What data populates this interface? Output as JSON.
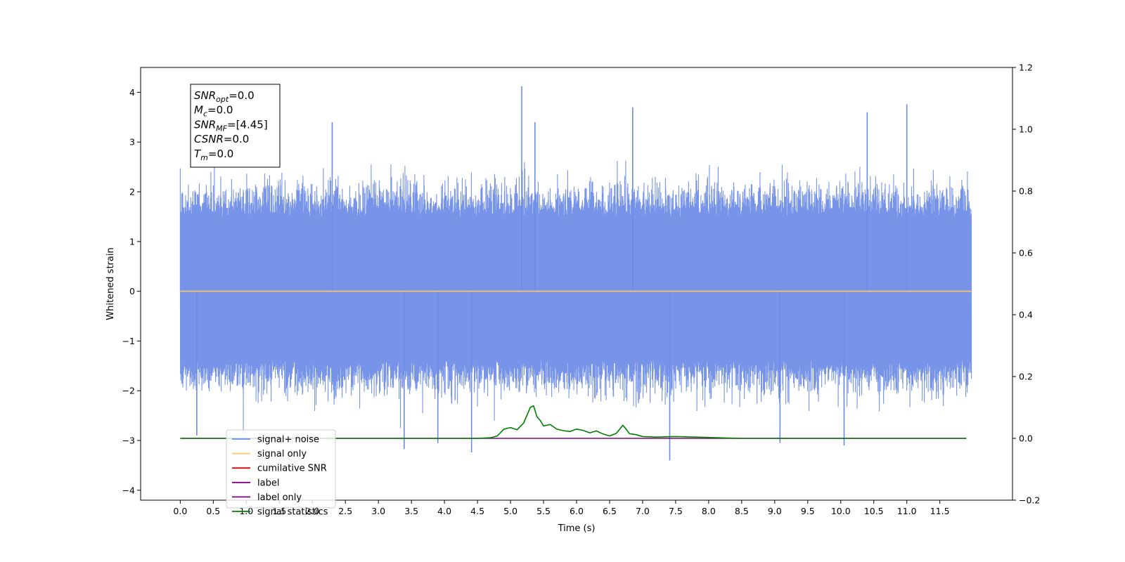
{
  "chart_data": {
    "type": "line",
    "xlabel": "Time (s)",
    "ylabel": "Whitened strain",
    "xlim": [
      -0.6,
      12.6
    ],
    "ylim": [
      -4.2,
      4.5
    ],
    "y2lim": [
      -0.2,
      1.2
    ],
    "x_ticks": [
      "0.0",
      "0.5",
      "1.0",
      "1.5",
      "2.0",
      "2.5",
      "3.0",
      "3.5",
      "4.0",
      "4.5",
      "5.0",
      "5.5",
      "6.0",
      "6.5",
      "7.0",
      "7.5",
      "8.0",
      "8.5",
      "9.0",
      "9.5",
      "10.0",
      "10.5",
      "11.0",
      "11.5"
    ],
    "y_ticks": [
      "4",
      "3",
      "2",
      "1",
      "0",
      "−1",
      "−2",
      "−3",
      "−4"
    ],
    "y2_ticks": [
      "1.2",
      "1.0",
      "0.8",
      "0.6",
      "0.4",
      "0.2",
      "0.0",
      "−0.2"
    ],
    "legend_position": "lower-left",
    "legend": [
      {
        "label": "signal+ noise",
        "color": "#6b8be6"
      },
      {
        "label": "signal only",
        "color": "#ffc966"
      },
      {
        "label": "cumilative SNR",
        "color": "#ff0000"
      },
      {
        "label": "label",
        "color": "#800080"
      },
      {
        "label": "label only",
        "color": "#800080"
      },
      {
        "label": "signal statistics",
        "color": "#008000"
      }
    ],
    "annotations": [
      {
        "base": "SNR",
        "sub": "opt",
        "value": "=0.0"
      },
      {
        "base": "M",
        "sub": "c",
        "value": "=0.0"
      },
      {
        "base": "SNR",
        "sub": "MF",
        "value": "=[4.45]"
      },
      {
        "base": "CSNR",
        "sub": "",
        "value": "=0.0"
      },
      {
        "base": "T",
        "sub": "m",
        "value": "=0.0"
      }
    ],
    "series": [
      {
        "name": "signal+ noise",
        "axis": "left",
        "color": "#6b8be6",
        "x_range": [
          0.0,
          11.98
        ],
        "envelope_typical": [
          -1.4,
          1.5
        ],
        "extremes": [
          {
            "x": 5.17,
            "y": 4.12
          },
          {
            "x": 11.0,
            "y": 3.76
          },
          {
            "x": 6.85,
            "y": 3.7
          },
          {
            "x": 10.4,
            "y": 3.6
          },
          {
            "x": 2.3,
            "y": 3.4
          },
          {
            "x": 5.37,
            "y": 3.4
          },
          {
            "x": 7.41,
            "y": -3.4
          },
          {
            "x": 3.39,
            "y": -3.17
          },
          {
            "x": 4.41,
            "y": -3.24
          },
          {
            "x": 3.9,
            "y": -3.05
          },
          {
            "x": 10.05,
            "y": -3.1
          },
          {
            "x": 9.08,
            "y": -3.05
          },
          {
            "x": 0.25,
            "y": -2.9
          }
        ]
      },
      {
        "name": "signal only",
        "axis": "left",
        "color": "#ffc966",
        "x": [
          0.0,
          11.98
        ],
        "y": [
          0.0,
          0.0
        ]
      },
      {
        "name": "label",
        "axis": "right",
        "color": "#800080",
        "x": [
          0.0,
          11.9
        ],
        "y": [
          0.0,
          0.0
        ]
      },
      {
        "name": "signal statistics",
        "axis": "right",
        "color": "#008000",
        "x": [
          0.0,
          4.5,
          4.7,
          4.8,
          4.9,
          5.0,
          5.1,
          5.2,
          5.3,
          5.35,
          5.4,
          5.45,
          5.5,
          5.6,
          5.7,
          5.8,
          5.9,
          6.0,
          6.05,
          6.1,
          6.2,
          6.3,
          6.4,
          6.5,
          6.6,
          6.7,
          6.75,
          6.8,
          6.9,
          7.0,
          7.2,
          7.5,
          8.0,
          8.3,
          8.5,
          11.9
        ],
        "y": [
          0.0,
          0.0,
          0.002,
          0.008,
          0.03,
          0.035,
          0.028,
          0.05,
          0.1,
          0.105,
          0.07,
          0.058,
          0.04,
          0.045,
          0.03,
          0.025,
          0.022,
          0.03,
          0.028,
          0.026,
          0.018,
          0.024,
          0.014,
          0.008,
          0.016,
          0.042,
          0.03,
          0.015,
          0.012,
          0.006,
          0.004,
          0.006,
          0.003,
          0.001,
          0.0,
          0.0
        ]
      }
    ]
  }
}
